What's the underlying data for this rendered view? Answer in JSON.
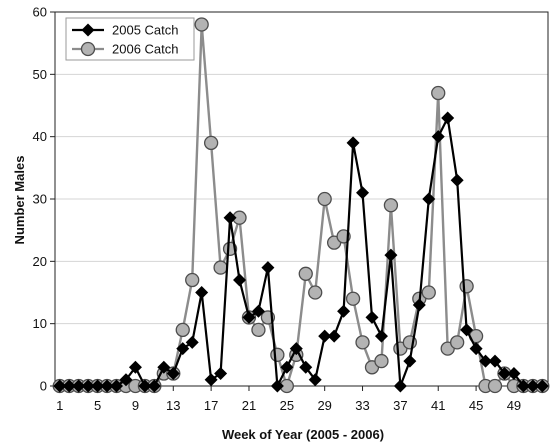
{
  "chart_data": {
    "type": "line",
    "title": "",
    "xlabel": "Week of Year (2005 - 2006)",
    "ylabel": "Number Males",
    "xlim": [
      1,
      52
    ],
    "ylim": [
      0,
      60
    ],
    "x_ticks": [
      1,
      5,
      9,
      13,
      17,
      21,
      25,
      29,
      33,
      37,
      41,
      45,
      49
    ],
    "y_ticks": [
      0,
      10,
      20,
      30,
      40,
      50,
      60
    ],
    "grid": "horizontal",
    "legend_position": "top-left",
    "x": [
      1,
      2,
      3,
      4,
      5,
      6,
      7,
      8,
      9,
      10,
      11,
      12,
      13,
      14,
      15,
      16,
      17,
      18,
      19,
      20,
      21,
      22,
      23,
      24,
      25,
      26,
      27,
      28,
      29,
      30,
      31,
      32,
      33,
      34,
      35,
      36,
      37,
      38,
      39,
      40,
      41,
      42,
      43,
      44,
      45,
      46,
      47,
      48,
      49,
      50,
      51,
      52
    ],
    "series": [
      {
        "name": "2005 Catch",
        "color": "#000000",
        "marker": "diamond",
        "values": [
          0,
          0,
          0,
          0,
          0,
          0,
          0,
          1,
          3,
          0,
          0,
          3,
          2,
          6,
          7,
          15,
          1,
          2,
          27,
          17,
          11,
          12,
          19,
          0,
          3,
          6,
          3,
          1,
          8,
          8,
          12,
          39,
          31,
          11,
          8,
          21,
          0,
          4,
          13,
          30,
          40,
          43,
          33,
          9,
          6,
          4,
          4,
          2,
          2,
          0,
          0,
          0
        ]
      },
      {
        "name": "2006 Catch",
        "color": "#999999",
        "marker": "circle",
        "values": [
          0,
          0,
          0,
          0,
          0,
          0,
          0,
          0,
          0,
          0,
          0,
          2,
          2,
          9,
          17,
          58,
          39,
          19,
          22,
          27,
          11,
          9,
          11,
          5,
          0,
          5,
          18,
          15,
          30,
          23,
          24,
          14,
          7,
          3,
          4,
          29,
          6,
          7,
          14,
          15,
          47,
          6,
          7,
          16,
          8,
          0,
          0,
          2,
          0,
          0,
          0,
          0
        ]
      }
    ]
  }
}
